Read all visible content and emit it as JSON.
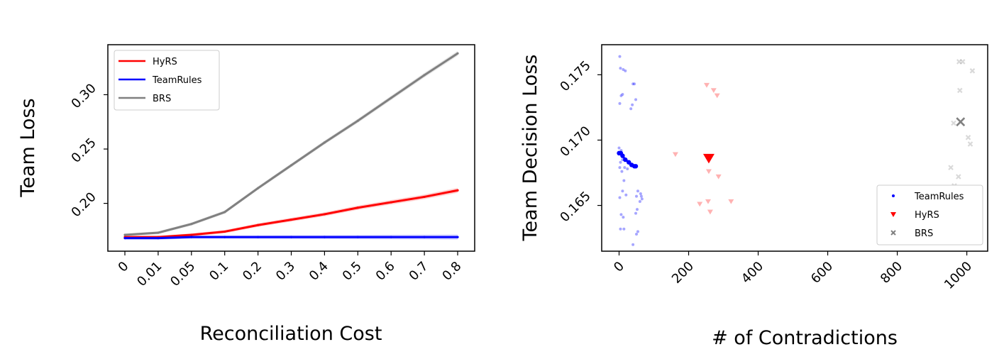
{
  "chart_data": [
    {
      "type": "line",
      "xlabel": "Reconciliation Cost",
      "ylabel": "Team Loss",
      "categories": [
        "0",
        "0.01",
        "0.05",
        "0.1",
        "0.2",
        "0.3",
        "0.4",
        "0.5",
        "0.6",
        "0.7",
        "0.8"
      ],
      "yticks": [
        "0.20",
        "0.25",
        "0.30"
      ],
      "yticks_values": [
        0.2,
        0.25,
        0.3
      ],
      "ylim": [
        0.156,
        0.346
      ],
      "legend_position": "upper-left",
      "grid": false,
      "series": [
        {
          "name": "HyRS",
          "color": "#ff0000",
          "values": [
            0.169,
            0.169,
            0.171,
            0.174,
            0.18,
            0.185,
            0.19,
            0.196,
            0.201,
            0.206,
            0.212
          ]
        },
        {
          "name": "TeamRules",
          "color": "#0000ff",
          "values": [
            0.168,
            0.168,
            0.169,
            0.169,
            0.169,
            0.169,
            0.169,
            0.169,
            0.169,
            0.169,
            0.169
          ]
        },
        {
          "name": "BRS",
          "color": "#808080",
          "values": [
            0.171,
            0.173,
            0.181,
            0.192,
            0.214,
            0.235,
            0.256,
            0.276,
            0.297,
            0.318,
            0.338
          ]
        }
      ]
    },
    {
      "type": "scatter",
      "xlabel": "# of Contradictions",
      "ylabel": "Team Decision Loss",
      "xticks": [
        "0",
        "200",
        "400",
        "600",
        "800",
        "1000"
      ],
      "xticks_values": [
        0,
        200,
        400,
        600,
        800,
        1000
      ],
      "yticks": [
        "0.165",
        "0.170",
        "0.175"
      ],
      "yticks_values": [
        0.165,
        0.17,
        0.175
      ],
      "xlim": [
        -50,
        1060
      ],
      "ylim": [
        0.1615,
        0.1773
      ],
      "legend_position": "lower-right",
      "grid": false,
      "series": [
        {
          "name": "TeamRules",
          "color": "#0000ff",
          "marker": "dot",
          "mean_path": [
            [
              0,
              0.169
            ],
            [
              5,
              0.169
            ],
            [
              10,
              0.1688
            ],
            [
              18,
              0.1685
            ],
            [
              28,
              0.1683
            ],
            [
              36,
              0.1681
            ],
            [
              44,
              0.168
            ],
            [
              48,
              0.168
            ]
          ],
          "points": [
            [
              2,
              0.1764
            ],
            [
              4,
              0.1755
            ],
            [
              12,
              0.1754
            ],
            [
              18,
              0.1753
            ],
            [
              6,
              0.1734
            ],
            [
              10,
              0.1735
            ],
            [
              2,
              0.1728
            ],
            [
              40,
              0.1743
            ],
            [
              44,
              0.1743
            ],
            [
              48,
              0.1731
            ],
            [
              38,
              0.1727
            ],
            [
              34,
              0.1724
            ],
            [
              0,
              0.1694
            ],
            [
              6,
              0.1692
            ],
            [
              4,
              0.1683
            ],
            [
              10,
              0.1685
            ],
            [
              16,
              0.1679
            ],
            [
              24,
              0.1678
            ],
            [
              2,
              0.1679
            ],
            [
              8,
              0.1676
            ],
            [
              14,
              0.1669
            ],
            [
              10,
              0.1661
            ],
            [
              2,
              0.1656
            ],
            [
              20,
              0.1658
            ],
            [
              54,
              0.1661
            ],
            [
              62,
              0.1659
            ],
            [
              50,
              0.1657
            ],
            [
              64,
              0.1657
            ],
            [
              66,
              0.1655
            ],
            [
              52,
              0.1647
            ],
            [
              48,
              0.1644
            ],
            [
              6,
              0.1643
            ],
            [
              12,
              0.1641
            ],
            [
              4,
              0.1632
            ],
            [
              14,
              0.1632
            ],
            [
              50,
              0.1628
            ],
            [
              54,
              0.163
            ],
            [
              40,
              0.162
            ],
            [
              60,
              0.1653
            ]
          ]
        },
        {
          "name": "HyRS",
          "color": "#ff0000",
          "marker": "triangle-down",
          "mean": [
            258,
            0.1686
          ],
          "points": [
            [
              252,
              0.1742
            ],
            [
              272,
              0.1738
            ],
            [
              282,
              0.1734
            ],
            [
              162,
              0.1689
            ],
            [
              258,
              0.1676
            ],
            [
              286,
              0.1672
            ],
            [
              232,
              0.1651
            ],
            [
              256,
              0.1653
            ],
            [
              322,
              0.1653
            ],
            [
              262,
              0.1645
            ]
          ]
        },
        {
          "name": "BRS",
          "color": "#808080",
          "marker": "x",
          "mean": [
            982,
            0.1714
          ],
          "points": [
            [
              978,
              0.176
            ],
            [
              988,
              0.176
            ],
            [
              1016,
              0.1753
            ],
            [
              980,
              0.1738
            ],
            [
              962,
              0.1713
            ],
            [
              1004,
              0.1702
            ],
            [
              1010,
              0.1697
            ],
            [
              954,
              0.1679
            ],
            [
              976,
              0.1672
            ],
            [
              964,
              0.1665
            ]
          ]
        }
      ]
    }
  ]
}
